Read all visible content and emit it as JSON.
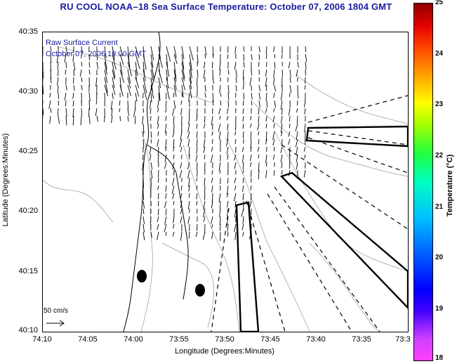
{
  "title": "RU COOL  NOAA–18  Sea Surface Temperature:  October 07, 2006 1804 GMT",
  "legend": {
    "line1": "Raw Surface Current",
    "line2": "October 07, 2006 19:00 GMT",
    "scale": "50 cm/s"
  },
  "axes": {
    "xlabel": "Longitude (Degrees:Minutes)",
    "ylabel": "Latitude (Degrees:Minutes)",
    "xticks": [
      "74:10",
      "74:05",
      "74:00",
      "73:55",
      "73:50",
      "73:45",
      "73:40",
      "73:35",
      "73:3"
    ],
    "yticks": [
      "40:35",
      "40:30",
      "40:25",
      "40:20",
      "40:15",
      "40:10"
    ]
  },
  "colorbar": {
    "label": "Temperature (°C)",
    "ticks": [
      "25",
      "24",
      "23",
      "22",
      "21",
      "20",
      "19",
      "18"
    ]
  },
  "colors": {
    "title": "#1a1aa0",
    "coast": "#000000",
    "contour": "#999999"
  }
}
